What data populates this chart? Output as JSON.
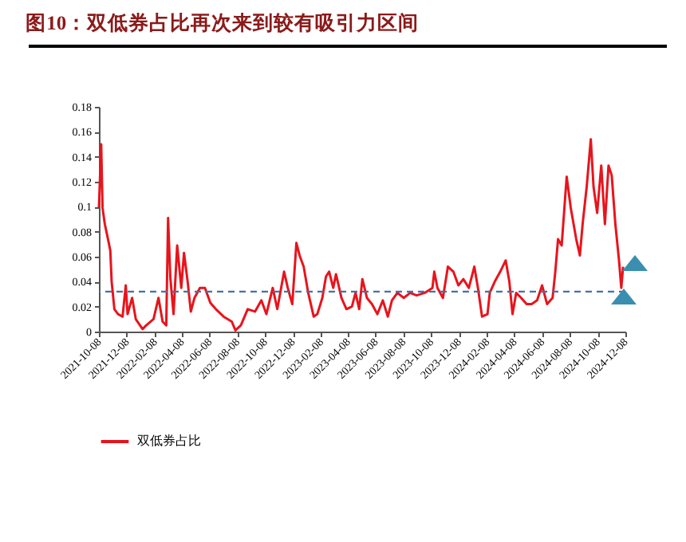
{
  "chart_data": {
    "type": "line",
    "title": "图10：双低券占比再次来到较有吸引力区间",
    "x": [
      "2021-10-08",
      "2021-10-13",
      "2021-10-16",
      "2021-10-21",
      "2021-10-28",
      "2021-11-02",
      "2021-11-05",
      "2021-11-11",
      "2021-11-19",
      "2021-11-29",
      "2021-12-06",
      "2021-12-10",
      "2021-12-20",
      "2021-12-28",
      "2022-01-12",
      "2022-01-20",
      "2022-02-05",
      "2022-02-16",
      "2022-02-25",
      "2022-03-05",
      "2022-03-09",
      "2022-03-14",
      "2022-03-21",
      "2022-03-29",
      "2022-04-07",
      "2022-04-13",
      "2022-04-21",
      "2022-04-28",
      "2022-05-06",
      "2022-05-18",
      "2022-05-29",
      "2022-06-10",
      "2022-06-22",
      "2022-07-09",
      "2022-07-27",
      "2022-08-04",
      "2022-08-16",
      "2022-08-31",
      "2022-09-16",
      "2022-09-30",
      "2022-10-11",
      "2022-10-25",
      "2022-11-04",
      "2022-11-19",
      "2022-11-27",
      "2022-12-07",
      "2022-12-16",
      "2022-12-23",
      "2023-01-01",
      "2023-01-11",
      "2023-01-23",
      "2023-01-31",
      "2023-02-11",
      "2023-02-19",
      "2023-02-26",
      "2023-03-07",
      "2023-03-13",
      "2023-03-25",
      "2023-04-05",
      "2023-04-17",
      "2023-04-25",
      "2023-05-03",
      "2023-05-10",
      "2023-05-20",
      "2023-05-31",
      "2023-06-12",
      "2023-06-24",
      "2023-07-05",
      "2023-07-14",
      "2023-07-26",
      "2023-08-09",
      "2023-08-23",
      "2023-09-06",
      "2023-09-24",
      "2023-10-11",
      "2023-10-15",
      "2023-10-22",
      "2023-11-03",
      "2023-11-14",
      "2023-11-26",
      "2023-12-07",
      "2023-12-18",
      "2023-12-30",
      "2024-01-11",
      "2024-01-19",
      "2024-01-28",
      "2024-02-09",
      "2024-02-14",
      "2024-02-25",
      "2024-03-08",
      "2024-03-20",
      "2024-03-28",
      "2024-04-04",
      "2024-04-12",
      "2024-04-23",
      "2024-05-05",
      "2024-05-16",
      "2024-05-28",
      "2024-06-08",
      "2024-06-19",
      "2024-07-01",
      "2024-07-07",
      "2024-07-13",
      "2024-07-21",
      "2024-08-01",
      "2024-08-10",
      "2024-08-22",
      "2024-08-30",
      "2024-09-05",
      "2024-09-14",
      "2024-09-23",
      "2024-09-29",
      "2024-10-07",
      "2024-10-16",
      "2024-10-24",
      "2024-11-01",
      "2024-11-08",
      "2024-11-16",
      "2024-11-24",
      "2024-11-29",
      "2024-12-03"
    ],
    "series": [
      {
        "name": "双低券占比",
        "color": "#e8141c",
        "values": [
          0.099,
          0.15,
          0.099,
          0.086,
          0.074,
          0.065,
          0.04,
          0.018,
          0.014,
          0.012,
          0.037,
          0.014,
          0.027,
          0.01,
          0.002,
          0.005,
          0.01,
          0.027,
          0.008,
          0.005,
          0.091,
          0.043,
          0.014,
          0.069,
          0.035,
          0.063,
          0.04,
          0.016,
          0.027,
          0.035,
          0.035,
          0.023,
          0.018,
          0.012,
          0.008,
          0.001,
          0.005,
          0.018,
          0.016,
          0.025,
          0.014,
          0.035,
          0.018,
          0.048,
          0.035,
          0.022,
          0.071,
          0.061,
          0.052,
          0.031,
          0.012,
          0.014,
          0.027,
          0.044,
          0.048,
          0.035,
          0.046,
          0.027,
          0.018,
          0.02,
          0.031,
          0.018,
          0.042,
          0.027,
          0.022,
          0.014,
          0.025,
          0.012,
          0.025,
          0.031,
          0.027,
          0.031,
          0.029,
          0.031,
          0.035,
          0.048,
          0.035,
          0.027,
          0.052,
          0.048,
          0.037,
          0.042,
          0.035,
          0.052,
          0.035,
          0.012,
          0.014,
          0.031,
          0.04,
          0.048,
          0.057,
          0.04,
          0.014,
          0.031,
          0.027,
          0.022,
          0.022,
          0.025,
          0.037,
          0.022,
          0.027,
          0.048,
          0.074,
          0.069,
          0.124,
          0.099,
          0.074,
          0.061,
          0.086,
          0.116,
          0.154,
          0.116,
          0.095,
          0.133,
          0.086,
          0.133,
          0.125,
          0.086,
          0.057,
          0.035,
          0.052
        ]
      }
    ],
    "xlim": [
      "2021-10-08",
      "2024-12-08"
    ],
    "xticks": [
      "2021-10-08",
      "2021-12-08",
      "2022-02-08",
      "2022-04-08",
      "2022-06-08",
      "2022-08-08",
      "2022-10-08",
      "2022-12-08",
      "2023-02-08",
      "2023-04-08",
      "2023-06-08",
      "2023-08-08",
      "2023-10-08",
      "2023-12-08",
      "2024-02-08",
      "2024-04-08",
      "2024-06-08",
      "2024-08-08",
      "2024-10-08",
      "2024-12-08"
    ],
    "ylim": [
      0,
      0.18
    ],
    "yticks": [
      0,
      0.02,
      0.04,
      0.06,
      0.08,
      0.1,
      0.12,
      0.14,
      0.16,
      0.18
    ],
    "ref_lines": [
      {
        "axis": "y",
        "value": 0.032,
        "color": "#4a6fa5",
        "line_style": "dashed"
      }
    ],
    "grid": false,
    "legend": "bottom",
    "marker": "none",
    "line_style": "solid"
  }
}
